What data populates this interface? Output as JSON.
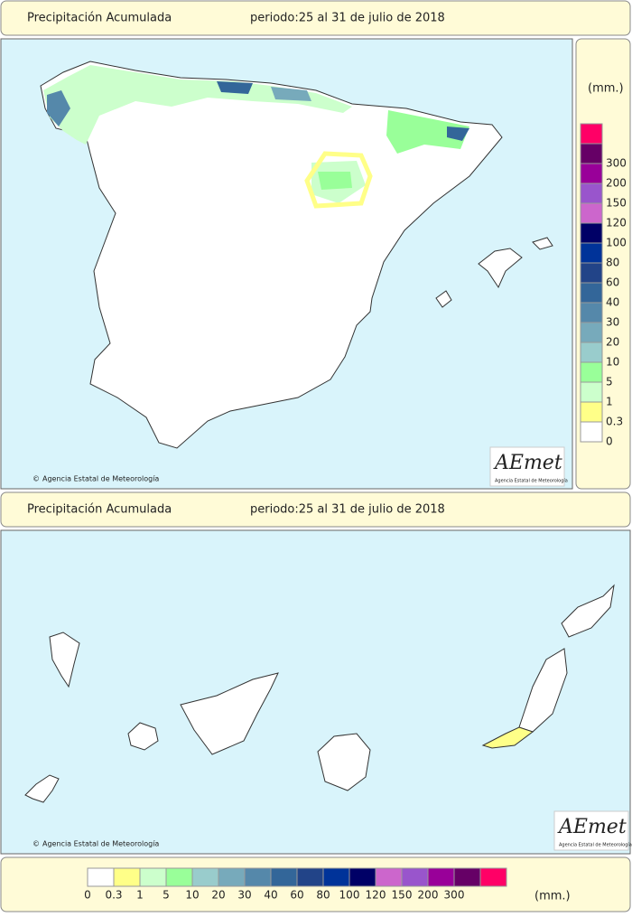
{
  "panels": [
    {
      "title": "Precipitación Acumulada",
      "period": "periodo:25 al 31 de julio de 2018"
    },
    {
      "title": "Precipitación Acumulada",
      "period": "periodo:25 al 31 de julio de 2018"
    }
  ],
  "credit": {
    "symbol": "©",
    "text": "Agencia Estatal de Meteorología"
  },
  "logo": {
    "name": "AEmet",
    "subtitle": "Agencia Estatal de Meteorología"
  },
  "legend": {
    "unit": "(mm.)",
    "labels": [
      "0",
      "0.3",
      "1",
      "5",
      "10",
      "20",
      "30",
      "40",
      "60",
      "80",
      "100",
      "120",
      "150",
      "200",
      "300"
    ],
    "colors": [
      "#ffffff",
      "#ffff88",
      "#ccffcc",
      "#99ff99",
      "#99cccc",
      "#77aabb",
      "#5588aa",
      "#336699",
      "#224488",
      "#003399",
      "#000066",
      "#cc66cc",
      "#9955cc",
      "#990099",
      "#660066",
      "#ff0066"
    ]
  }
}
